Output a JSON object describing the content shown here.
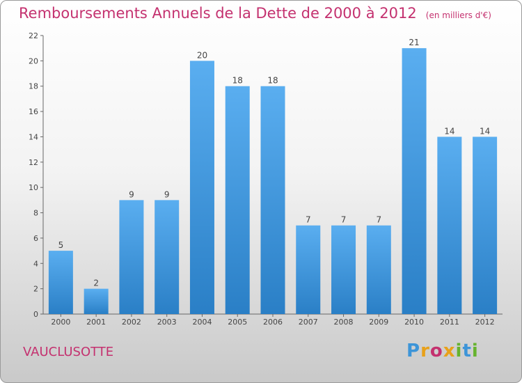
{
  "header": {
    "title": "Remboursements Annuels de la Dette de 2000 à 2012",
    "unit": "(en milliers d'€)"
  },
  "footer": {
    "place": "VAUCLUSOTTE",
    "logo": "Proxiti"
  },
  "colors": {
    "bar": "#3d95d8",
    "bar_light": "#5aaef0",
    "title": "#c4316f",
    "axis": "#666666"
  },
  "chart_data": {
    "type": "bar",
    "title": "Remboursements Annuels de la Dette de 2000 à 2012",
    "subtitle": "(en milliers d'€)",
    "categories": [
      "2000",
      "2001",
      "2002",
      "2003",
      "2004",
      "2005",
      "2006",
      "2007",
      "2008",
      "2009",
      "2010",
      "2011",
      "2012"
    ],
    "values": [
      5,
      2,
      9,
      9,
      20,
      18,
      18,
      7,
      7,
      7,
      21,
      14,
      14
    ],
    "ylim": [
      0,
      22
    ],
    "yticks": [
      0,
      2,
      4,
      6,
      8,
      10,
      12,
      14,
      16,
      18,
      20,
      22
    ],
    "grid": false,
    "data_labels": true
  }
}
